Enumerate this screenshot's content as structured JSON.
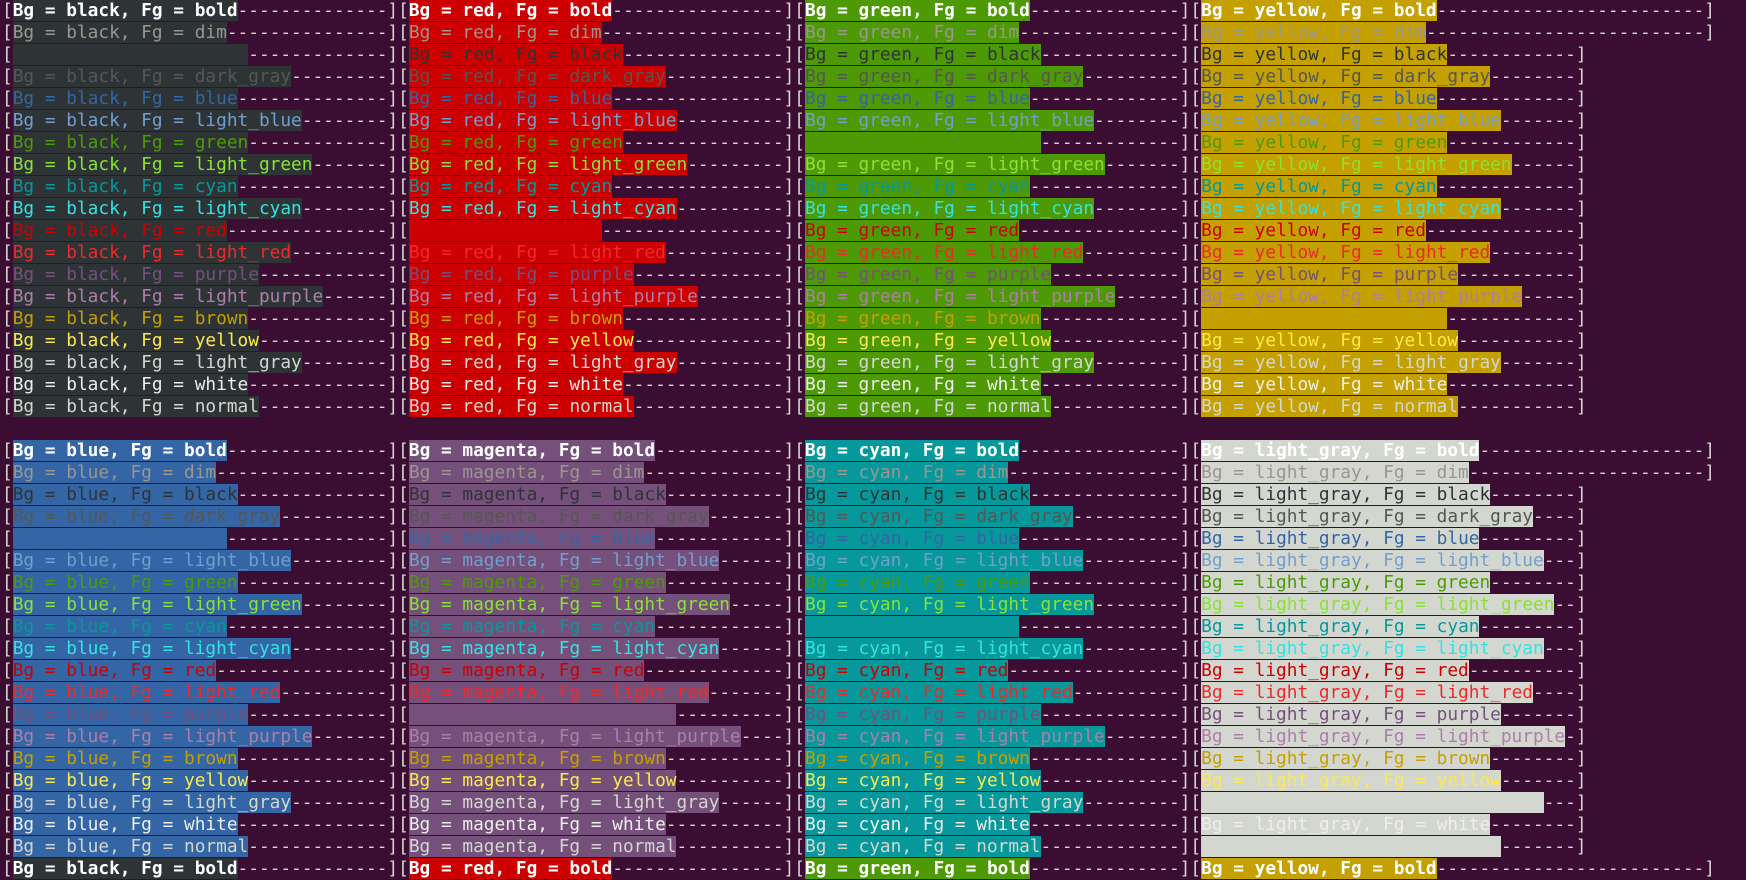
{
  "terminal": {
    "description": "terminal color test output",
    "default_bg": "#3b0d32",
    "default_fg": "#d3d7cf",
    "label_template": "Bg = {bg}, Fg = {fg}",
    "open_bracket": "[",
    "close_bracket": "]",
    "dash_char": "-",
    "content_pad_width": 35,
    "content_pad_width_attr_rows_last_col": 47,
    "sections": [
      {
        "bg_order": [
          "black",
          "red",
          "green",
          "yellow"
        ]
      },
      {
        "bg_order": [
          "blue",
          "magenta",
          "cyan",
          "light_gray"
        ]
      }
    ],
    "fg_order": [
      "bold",
      "dim",
      "black",
      "dark_gray",
      "blue",
      "light_blue",
      "green",
      "light_green",
      "cyan",
      "light_cyan",
      "red",
      "light_red",
      "purple",
      "light_purple",
      "brown",
      "yellow",
      "light_gray",
      "white",
      "normal"
    ],
    "attr_fgs_with_extra_padding": [
      "bold",
      "dim"
    ],
    "palette": {
      "black": "#2e3436",
      "red": "#cc0000",
      "green": "#4e9a06",
      "yellow": "#c4a000",
      "blue": "#3465a4",
      "magenta": "#75507b",
      "cyan": "#06989a",
      "light_gray": "#d3d7cf"
    },
    "fg_styles": {
      "bold": {
        "color": "#ffffff",
        "bold": true
      },
      "dim": {
        "color": "#9b968e",
        "bold": false
      },
      "black": {
        "color": "#2e3436",
        "bold": false
      },
      "dark_gray": {
        "color": "#555753",
        "bold": false
      },
      "blue": {
        "color": "#3465a4",
        "bold": false
      },
      "light_blue": {
        "color": "#729fcf",
        "bold": false
      },
      "green": {
        "color": "#4e9a06",
        "bold": false
      },
      "light_green": {
        "color": "#8ae234",
        "bold": false
      },
      "cyan": {
        "color": "#06989a",
        "bold": false
      },
      "light_cyan": {
        "color": "#34e2e2",
        "bold": false
      },
      "red": {
        "color": "#cc0000",
        "bold": false
      },
      "light_red": {
        "color": "#ef2929",
        "bold": false
      },
      "purple": {
        "color": "#75507b",
        "bold": false
      },
      "light_purple": {
        "color": "#ad7fa8",
        "bold": false
      },
      "brown": {
        "color": "#c4a000",
        "bold": false
      },
      "yellow": {
        "color": "#fce94f",
        "bold": false
      },
      "light_gray": {
        "color": "#d3d7cf",
        "bold": false
      },
      "white": {
        "color": "#eeeeec",
        "bold": false
      },
      "normal": {
        "color": "default",
        "bold": false
      }
    },
    "blank_line_between_sections": true,
    "partial_bottom_line": {
      "section": 0,
      "fg": "bold"
    }
  }
}
